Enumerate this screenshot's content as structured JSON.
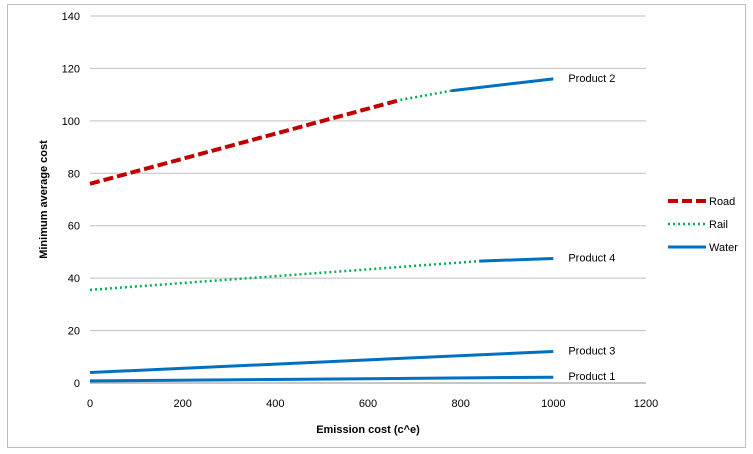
{
  "chart_data": {
    "type": "line",
    "title": "",
    "xlabel": "Emission cost (c^e)",
    "ylabel": "Minimum average cost",
    "xlim": [
      0,
      1200
    ],
    "ylim": [
      0,
      140
    ],
    "x_ticks": [
      0,
      200,
      400,
      600,
      800,
      1000,
      1200
    ],
    "y_ticks": [
      0,
      20,
      40,
      60,
      80,
      100,
      120,
      140
    ],
    "grid": "horizontal",
    "legend_position": "right",
    "legend": [
      {
        "name": "Road",
        "color": "#c00000",
        "style": "dashed"
      },
      {
        "name": "Rail",
        "color": "#00b050",
        "style": "dotted"
      },
      {
        "name": "Water",
        "color": "#0070c0",
        "style": "solid"
      }
    ],
    "products": [
      {
        "label": "Product 2",
        "segments": [
          {
            "mode": "Road",
            "points": [
              [
                0,
                76
              ],
              [
                670,
                108
              ]
            ]
          },
          {
            "mode": "Rail",
            "points": [
              [
                670,
                108
              ],
              [
                780,
                111.5
              ]
            ]
          },
          {
            "mode": "Water",
            "points": [
              [
                780,
                111.5
              ],
              [
                1000,
                116
              ]
            ]
          }
        ]
      },
      {
        "label": "Product 4",
        "segments": [
          {
            "mode": "Rail",
            "points": [
              [
                0,
                35.5
              ],
              [
                840,
                46.5
              ]
            ]
          },
          {
            "mode": "Water",
            "points": [
              [
                840,
                46.5
              ],
              [
                1000,
                47.5
              ]
            ]
          }
        ]
      },
      {
        "label": "Product 3",
        "segments": [
          {
            "mode": "Water",
            "points": [
              [
                0,
                4
              ],
              [
                1000,
                12
              ]
            ]
          }
        ]
      },
      {
        "label": "Product 1",
        "segments": [
          {
            "mode": "Water",
            "points": [
              [
                0,
                0.8
              ],
              [
                1000,
                2.2
              ]
            ]
          }
        ]
      }
    ]
  }
}
